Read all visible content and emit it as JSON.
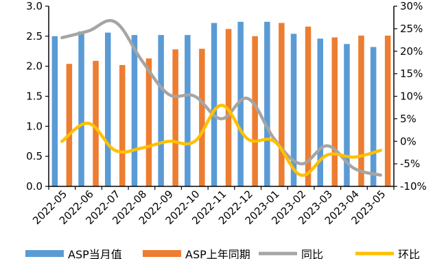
{
  "chart_data": {
    "type": "bar",
    "categories": [
      "2022-05",
      "2022-06",
      "2022-07",
      "2022-08",
      "2022-09",
      "2022-10",
      "2022-11",
      "2022-12",
      "2023-01",
      "2023-02",
      "2023-03",
      "2023-04",
      "2023-05"
    ],
    "series": [
      {
        "name": "ASP当月值",
        "type": "bar",
        "axis": "left",
        "color": "#5B9BD5",
        "values": [
          2.5,
          2.58,
          2.56,
          2.52,
          2.52,
          2.52,
          2.72,
          2.74,
          2.74,
          2.54,
          2.46,
          2.37,
          2.32
        ]
      },
      {
        "name": "ASP上年同期",
        "type": "bar",
        "axis": "left",
        "color": "#ED7D31",
        "values": [
          2.04,
          2.09,
          2.02,
          2.13,
          2.28,
          2.29,
          2.62,
          2.5,
          2.72,
          2.66,
          2.48,
          2.51,
          2.51
        ]
      },
      {
        "name": "同比",
        "type": "line",
        "axis": "right",
        "color": "#A5A5A5",
        "values": [
          23.0,
          24.5,
          26.5,
          18.0,
          10.5,
          10.0,
          5.0,
          9.5,
          0.5,
          -5.0,
          -1.0,
          -6.0,
          -7.5
        ]
      },
      {
        "name": "环比",
        "type": "line",
        "axis": "right",
        "color": "#FFC000",
        "values": [
          0.0,
          4.0,
          -2.0,
          -1.5,
          0.0,
          0.0,
          8.0,
          0.5,
          0.0,
          -7.5,
          -3.0,
          -3.5,
          -2.0
        ]
      }
    ],
    "y_left": {
      "min": 0,
      "max": 3.0,
      "ticks": [
        "0.0",
        "0.5",
        "1.0",
        "1.5",
        "2.0",
        "2.5",
        "3.0"
      ]
    },
    "y_right": {
      "min": -10,
      "max": 30,
      "ticks": [
        "-10%",
        "-5%",
        "0%",
        "5%",
        "10%",
        "15%",
        "20%",
        "25%",
        "30%"
      ]
    },
    "grid": false,
    "legend_position": "bottom"
  }
}
